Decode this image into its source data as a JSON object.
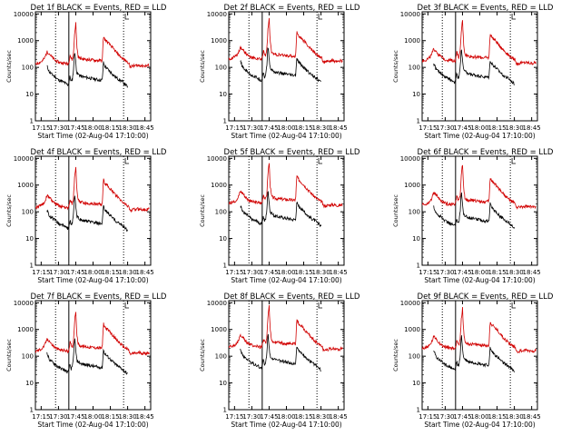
{
  "colors": {
    "events": "#000000",
    "lld": "#d10000",
    "axes": "#000000"
  },
  "chart_data": [
    {
      "type": "line",
      "title": "Det 1f  BLACK = Events, RED = LLD",
      "xlabel": "Start Time (02-Aug-04 17:10:00)",
      "ylabel": "Counts/sec",
      "ylog": true
    },
    {
      "type": "line",
      "title": "Det 2f  BLACK = Events, RED = LLD",
      "xlabel": "Start Time (02-Aug-04 17:10:00)",
      "ylabel": "Counts/sec",
      "ylog": true
    },
    {
      "type": "line",
      "title": "Det 3f  BLACK = Events, RED = LLD",
      "xlabel": "Start Time (02-Aug-04 17:10:00)",
      "ylabel": "Counts/sec",
      "ylog": true
    },
    {
      "type": "line",
      "title": "Det 4f  BLACK = Events, RED = LLD",
      "xlabel": "Start Time (02-Aug-04 17:10:00)",
      "ylabel": "Counts/sec",
      "ylog": true
    },
    {
      "type": "line",
      "title": "Det 5f  BLACK = Events, RED = LLD",
      "xlabel": "Start Time (02-Aug-04 17:10:00)",
      "ylabel": "Counts/sec",
      "ylog": true
    },
    {
      "type": "line",
      "title": "Det 6f  BLACK = Events, RED = LLD",
      "xlabel": "Start Time (02-Aug-04 17:10:00)",
      "ylabel": "Counts/sec",
      "ylog": true
    },
    {
      "type": "line",
      "title": "Det 7f  BLACK = Events, RED = LLD",
      "xlabel": "Start Time (02-Aug-04 17:10:00)",
      "ylabel": "Counts/sec",
      "ylog": true
    },
    {
      "type": "line",
      "title": "Det 8f  BLACK = Events, RED = LLD",
      "xlabel": "Start Time (02-Aug-04 17:10:00)",
      "ylabel": "Counts/sec",
      "ylog": true
    },
    {
      "type": "line",
      "title": "Det 9f  BLACK = Events, RED = LLD",
      "xlabel": "Start Time (02-Aug-04 17:10:00)",
      "ylabel": "Counts/sec",
      "ylog": true
    }
  ],
  "shared_axes": {
    "x_ticks": [
      "17:15",
      "17:30",
      "17:45",
      "18:00",
      "18:15",
      "18:30",
      "18:45"
    ],
    "x_tick_minutes": [
      5,
      20,
      35,
      50,
      65,
      80,
      95
    ],
    "xlim_minutes": [
      0,
      100
    ],
    "y_ticks": [
      "1",
      "10",
      "100",
      "1000",
      "10000"
    ],
    "y_tick_values": [
      1,
      10,
      100,
      1000,
      10000
    ],
    "ylim": [
      1,
      12000
    ],
    "markers": {
      "dotted": [
        17.5,
        76.5
      ],
      "solid": [
        29.0
      ]
    }
  },
  "series_shape": {
    "events": {
      "x": [
        10,
        11,
        12,
        14,
        16,
        18,
        20,
        22,
        24,
        26,
        28,
        28.6,
        29.4,
        30,
        31,
        32,
        33,
        34,
        35,
        36,
        38,
        40,
        45,
        50,
        55,
        58,
        59,
        60,
        65,
        70,
        75,
        80
      ],
      "y": [
        150,
        120,
        90,
        75,
        65,
        55,
        45,
        42,
        38,
        34,
        30,
        30,
        45,
        60,
        40,
        45,
        100,
        600,
        200,
        80,
        70,
        60,
        55,
        50,
        45,
        45,
        200,
        150,
        90,
        55,
        40,
        25
      ]
    },
    "lld": {
      "x": [
        0,
        3,
        6,
        8,
        10,
        12,
        14,
        16,
        18,
        20,
        22,
        24,
        26,
        28,
        28.6,
        29.4,
        30,
        31,
        32,
        33,
        34,
        35,
        36,
        37,
        38,
        40,
        45,
        50,
        55,
        58,
        59,
        60,
        65,
        70,
        75,
        78,
        81,
        82,
        85,
        90,
        95,
        99
      ],
      "y": [
        180,
        200,
        230,
        300,
        500,
        450,
        330,
        270,
        230,
        210,
        200,
        195,
        190,
        180,
        180,
        250,
        400,
        300,
        250,
        400,
        2500,
        6000,
        800,
        350,
        300,
        280,
        260,
        250,
        240,
        240,
        2000,
        1500,
        900,
        500,
        300,
        240,
        200,
        140,
        150,
        160,
        150,
        160
      ]
    }
  }
}
